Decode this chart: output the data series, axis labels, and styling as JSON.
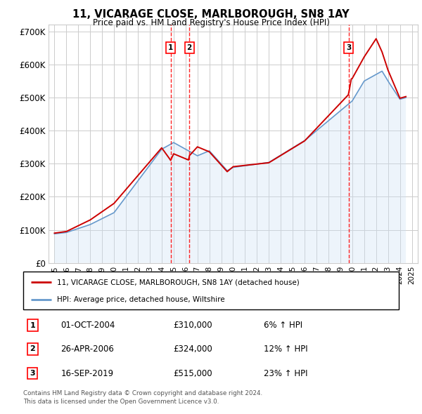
{
  "title": "11, VICARAGE CLOSE, MARLBOROUGH, SN8 1AY",
  "subtitle": "Price paid vs. HM Land Registry's House Price Index (HPI)",
  "footer_line1": "Contains HM Land Registry data © Crown copyright and database right 2024.",
  "footer_line2": "This data is licensed under the Open Government Licence v3.0.",
  "legend_line1": "11, VICARAGE CLOSE, MARLBOROUGH, SN8 1AY (detached house)",
  "legend_line2": "HPI: Average price, detached house, Wiltshire",
  "transactions": [
    {
      "num": 1,
      "date": "01-OCT-2004",
      "price": 310000,
      "hpi_pct": "6%",
      "direction": "↑"
    },
    {
      "num": 2,
      "date": "26-APR-2006",
      "price": 324000,
      "hpi_pct": "12%",
      "direction": "↑"
    },
    {
      "num": 3,
      "date": "16-SEP-2019",
      "price": 515000,
      "hpi_pct": "23%",
      "direction": "↑"
    }
  ],
  "transaction_dates_decimal": [
    2004.75,
    2006.32,
    2019.71
  ],
  "ylim": [
    0,
    720000
  ],
  "yticks": [
    0,
    100000,
    200000,
    300000,
    400000,
    500000,
    600000,
    700000
  ],
  "ytick_labels": [
    "£0",
    "£100K",
    "£200K",
    "£300K",
    "£400K",
    "£500K",
    "£600K",
    "£700K"
  ],
  "xlim_start": 1994.5,
  "xlim_end": 2025.5,
  "xticks": [
    1995,
    1996,
    1997,
    1998,
    1999,
    2000,
    2001,
    2002,
    2003,
    2004,
    2005,
    2006,
    2007,
    2008,
    2009,
    2010,
    2011,
    2012,
    2013,
    2014,
    2015,
    2016,
    2017,
    2018,
    2019,
    2020,
    2021,
    2022,
    2023,
    2024,
    2025
  ],
  "red_line_color": "#cc0000",
  "blue_line_color": "#6699cc",
  "blue_fill_color": "#cce0f5",
  "grid_color": "#cccccc",
  "background_color": "#ffffff"
}
